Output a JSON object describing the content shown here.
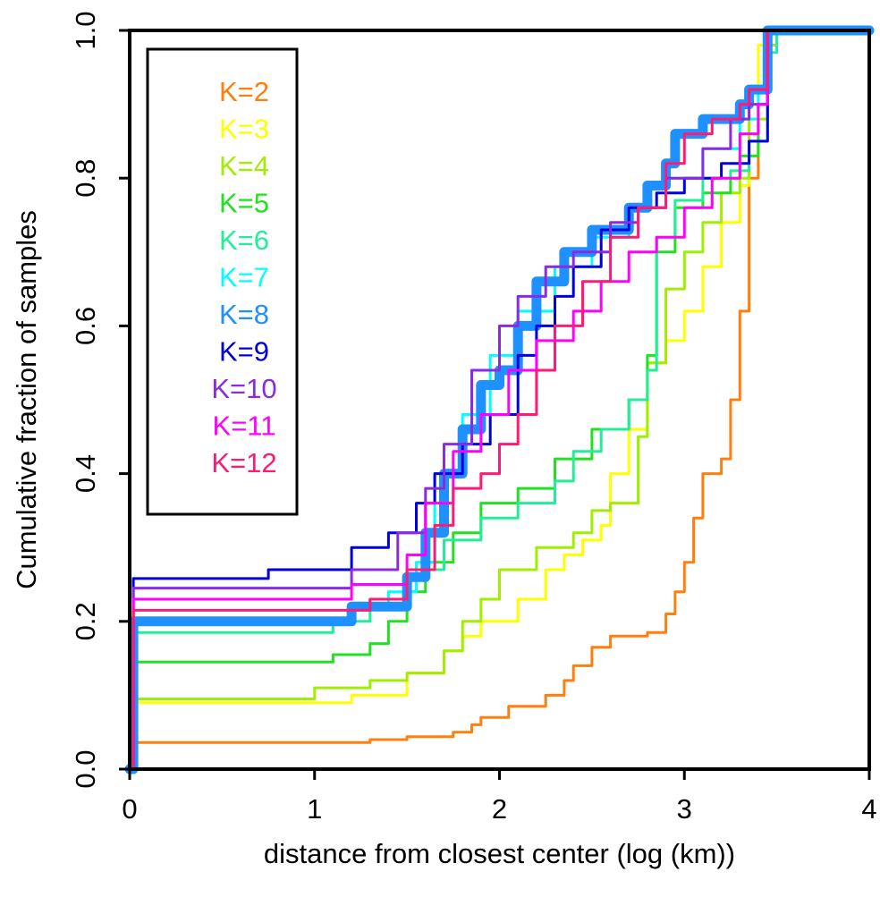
{
  "chart_data": {
    "type": "line",
    "title": "",
    "xlabel": "distance from closest center (log (km))",
    "ylabel": "Cumulative fraction of samples",
    "xlim": [
      0,
      4
    ],
    "ylim": [
      0,
      1
    ],
    "xticks": [
      "0",
      "1",
      "2",
      "3",
      "4"
    ],
    "yticks": [
      "0.0",
      "0.2",
      "0.4",
      "0.6",
      "0.8",
      "1.0"
    ],
    "grid": false,
    "legend_position": "top-left",
    "reference_lines": [
      0,
      1
    ],
    "series": [
      {
        "name": "K=2",
        "color": "#ff7f0e",
        "width": 3,
        "points": [
          [
            0,
            0
          ],
          [
            0.02,
            0.036
          ],
          [
            1.1,
            0.036
          ],
          [
            1.3,
            0.04
          ],
          [
            1.5,
            0.044
          ],
          [
            1.75,
            0.05
          ],
          [
            1.85,
            0.06
          ],
          [
            1.9,
            0.07
          ],
          [
            2.05,
            0.085
          ],
          [
            2.2,
            0.085
          ],
          [
            2.25,
            0.1
          ],
          [
            2.35,
            0.12
          ],
          [
            2.4,
            0.14
          ],
          [
            2.5,
            0.165
          ],
          [
            2.6,
            0.18
          ],
          [
            2.8,
            0.185
          ],
          [
            2.9,
            0.21
          ],
          [
            2.95,
            0.24
          ],
          [
            3.0,
            0.28
          ],
          [
            3.05,
            0.34
          ],
          [
            3.1,
            0.4
          ],
          [
            3.2,
            0.42
          ],
          [
            3.25,
            0.5
          ],
          [
            3.3,
            0.62
          ],
          [
            3.35,
            0.8
          ],
          [
            3.4,
            0.9
          ],
          [
            3.45,
            1.0
          ],
          [
            4.0,
            1.0
          ]
        ]
      },
      {
        "name": "K=3",
        "color": "#ffff00",
        "width": 3,
        "points": [
          [
            0,
            0
          ],
          [
            0.02,
            0.09
          ],
          [
            1.1,
            0.09
          ],
          [
            1.2,
            0.1
          ],
          [
            1.5,
            0.13
          ],
          [
            1.7,
            0.16
          ],
          [
            1.8,
            0.18
          ],
          [
            1.9,
            0.2
          ],
          [
            2.1,
            0.23
          ],
          [
            2.25,
            0.27
          ],
          [
            2.35,
            0.29
          ],
          [
            2.45,
            0.31
          ],
          [
            2.55,
            0.33
          ],
          [
            2.6,
            0.4
          ],
          [
            2.7,
            0.46
          ],
          [
            2.8,
            0.55
          ],
          [
            2.9,
            0.58
          ],
          [
            3.0,
            0.62
          ],
          [
            3.1,
            0.68
          ],
          [
            3.2,
            0.74
          ],
          [
            3.3,
            0.79
          ],
          [
            3.35,
            0.9
          ],
          [
            3.4,
            0.98
          ],
          [
            3.45,
            1.0
          ],
          [
            4.0,
            1.0
          ]
        ]
      },
      {
        "name": "K=4",
        "color": "#a0ee00",
        "width": 3,
        "points": [
          [
            0,
            0
          ],
          [
            0.02,
            0.095
          ],
          [
            0.9,
            0.095
          ],
          [
            1.0,
            0.11
          ],
          [
            1.3,
            0.12
          ],
          [
            1.5,
            0.13
          ],
          [
            1.7,
            0.16
          ],
          [
            1.8,
            0.2
          ],
          [
            1.9,
            0.23
          ],
          [
            2.0,
            0.27
          ],
          [
            2.2,
            0.3
          ],
          [
            2.4,
            0.32
          ],
          [
            2.5,
            0.35
          ],
          [
            2.6,
            0.36
          ],
          [
            2.75,
            0.45
          ],
          [
            2.8,
            0.55
          ],
          [
            2.9,
            0.65
          ],
          [
            3.0,
            0.7
          ],
          [
            3.1,
            0.74
          ],
          [
            3.2,
            0.78
          ],
          [
            3.3,
            0.8
          ],
          [
            3.35,
            0.88
          ],
          [
            3.45,
            0.98
          ],
          [
            3.5,
            1.0
          ],
          [
            4.0,
            1.0
          ]
        ]
      },
      {
        "name": "K=5",
        "color": "#22e022",
        "width": 3,
        "points": [
          [
            0,
            0
          ],
          [
            0.02,
            0.145
          ],
          [
            1.0,
            0.145
          ],
          [
            1.1,
            0.155
          ],
          [
            1.3,
            0.17
          ],
          [
            1.4,
            0.2
          ],
          [
            1.5,
            0.24
          ],
          [
            1.6,
            0.28
          ],
          [
            1.75,
            0.32
          ],
          [
            1.9,
            0.36
          ],
          [
            2.1,
            0.38
          ],
          [
            2.3,
            0.42
          ],
          [
            2.5,
            0.46
          ],
          [
            2.7,
            0.5
          ],
          [
            2.8,
            0.56
          ],
          [
            2.85,
            0.7
          ],
          [
            2.95,
            0.76
          ],
          [
            3.1,
            0.78
          ],
          [
            3.25,
            0.8
          ],
          [
            3.3,
            0.83
          ],
          [
            3.4,
            0.9
          ],
          [
            3.45,
            1.0
          ],
          [
            4.0,
            1.0
          ]
        ]
      },
      {
        "name": "K=6",
        "color": "#22ee99",
        "width": 3,
        "points": [
          [
            0,
            0
          ],
          [
            0.02,
            0.185
          ],
          [
            1.0,
            0.185
          ],
          [
            1.1,
            0.2
          ],
          [
            1.3,
            0.23
          ],
          [
            1.5,
            0.27
          ],
          [
            1.7,
            0.31
          ],
          [
            1.9,
            0.34
          ],
          [
            2.1,
            0.36
          ],
          [
            2.3,
            0.39
          ],
          [
            2.4,
            0.43
          ],
          [
            2.55,
            0.46
          ],
          [
            2.7,
            0.5
          ],
          [
            2.8,
            0.54
          ],
          [
            2.85,
            0.72
          ],
          [
            2.95,
            0.77
          ],
          [
            3.1,
            0.8
          ],
          [
            3.25,
            0.81
          ],
          [
            3.35,
            0.85
          ],
          [
            3.45,
            0.97
          ],
          [
            3.5,
            1.0
          ],
          [
            4.0,
            1.0
          ]
        ]
      },
      {
        "name": "K=7",
        "color": "#00ffff",
        "width": 3,
        "points": [
          [
            0,
            0
          ],
          [
            0.02,
            0.2
          ],
          [
            1.1,
            0.2
          ],
          [
            1.2,
            0.22
          ],
          [
            1.4,
            0.24
          ],
          [
            1.55,
            0.28
          ],
          [
            1.65,
            0.4
          ],
          [
            1.8,
            0.48
          ],
          [
            1.95,
            0.56
          ],
          [
            2.1,
            0.62
          ],
          [
            2.3,
            0.68
          ],
          [
            2.5,
            0.72
          ],
          [
            2.7,
            0.76
          ],
          [
            2.9,
            0.8
          ],
          [
            3.1,
            0.84
          ],
          [
            3.3,
            0.88
          ],
          [
            3.4,
            0.92
          ],
          [
            3.45,
            1.0
          ],
          [
            4.0,
            1.0
          ]
        ]
      },
      {
        "name": "K=8",
        "color": "#1e90ff",
        "width": 11,
        "points": [
          [
            0,
            0
          ],
          [
            0.02,
            0.2
          ],
          [
            1.0,
            0.2
          ],
          [
            1.2,
            0.22
          ],
          [
            1.5,
            0.26
          ],
          [
            1.6,
            0.32
          ],
          [
            1.7,
            0.4
          ],
          [
            1.8,
            0.46
          ],
          [
            1.9,
            0.52
          ],
          [
            2.0,
            0.54
          ],
          [
            2.1,
            0.6
          ],
          [
            2.2,
            0.66
          ],
          [
            2.35,
            0.7
          ],
          [
            2.5,
            0.73
          ],
          [
            2.7,
            0.76
          ],
          [
            2.8,
            0.79
          ],
          [
            2.9,
            0.82
          ],
          [
            2.95,
            0.86
          ],
          [
            3.1,
            0.88
          ],
          [
            3.3,
            0.9
          ],
          [
            3.35,
            0.92
          ],
          [
            3.45,
            1.0
          ],
          [
            4.0,
            1.0
          ]
        ]
      },
      {
        "name": "K=9",
        "color": "#0000dd",
        "width": 3,
        "points": [
          [
            0,
            0
          ],
          [
            0.02,
            0.258
          ],
          [
            0.7,
            0.258
          ],
          [
            0.75,
            0.27
          ],
          [
            1.2,
            0.3
          ],
          [
            1.4,
            0.32
          ],
          [
            1.55,
            0.36
          ],
          [
            1.65,
            0.4
          ],
          [
            1.8,
            0.44
          ],
          [
            1.95,
            0.48
          ],
          [
            2.1,
            0.56
          ],
          [
            2.2,
            0.6
          ],
          [
            2.3,
            0.64
          ],
          [
            2.4,
            0.68
          ],
          [
            2.55,
            0.73
          ],
          [
            2.7,
            0.76
          ],
          [
            2.85,
            0.78
          ],
          [
            3.0,
            0.8
          ],
          [
            3.2,
            0.82
          ],
          [
            3.35,
            0.85
          ],
          [
            3.45,
            1.0
          ],
          [
            4.0,
            1.0
          ]
        ]
      },
      {
        "name": "K=10",
        "color": "#8a2be2",
        "width": 3,
        "points": [
          [
            0,
            0
          ],
          [
            0.02,
            0.245
          ],
          [
            1.0,
            0.245
          ],
          [
            1.2,
            0.27
          ],
          [
            1.45,
            0.32
          ],
          [
            1.6,
            0.38
          ],
          [
            1.7,
            0.44
          ],
          [
            1.85,
            0.54
          ],
          [
            2.0,
            0.6
          ],
          [
            2.1,
            0.64
          ],
          [
            2.25,
            0.68
          ],
          [
            2.4,
            0.7
          ],
          [
            2.6,
            0.74
          ],
          [
            2.75,
            0.76
          ],
          [
            2.9,
            0.8
          ],
          [
            3.1,
            0.84
          ],
          [
            3.25,
            0.88
          ],
          [
            3.35,
            0.9
          ],
          [
            3.45,
            1.0
          ],
          [
            4.0,
            1.0
          ]
        ]
      },
      {
        "name": "K=11",
        "color": "#ff00ff",
        "width": 3,
        "points": [
          [
            0,
            0
          ],
          [
            0.02,
            0.23
          ],
          [
            1.0,
            0.23
          ],
          [
            1.2,
            0.25
          ],
          [
            1.5,
            0.29
          ],
          [
            1.6,
            0.36
          ],
          [
            1.75,
            0.43
          ],
          [
            1.9,
            0.48
          ],
          [
            2.05,
            0.54
          ],
          [
            2.2,
            0.58
          ],
          [
            2.4,
            0.62
          ],
          [
            2.55,
            0.66
          ],
          [
            2.7,
            0.7
          ],
          [
            2.85,
            0.72
          ],
          [
            3.0,
            0.76
          ],
          [
            3.15,
            0.8
          ],
          [
            3.3,
            0.86
          ],
          [
            3.4,
            0.9
          ],
          [
            3.45,
            1.0
          ],
          [
            4.0,
            1.0
          ]
        ]
      },
      {
        "name": "K=12",
        "color": "#ff1a75",
        "width": 3,
        "points": [
          [
            0,
            0
          ],
          [
            0.02,
            0.215
          ],
          [
            1.0,
            0.215
          ],
          [
            1.3,
            0.23
          ],
          [
            1.5,
            0.27
          ],
          [
            1.65,
            0.33
          ],
          [
            1.75,
            0.38
          ],
          [
            1.9,
            0.4
          ],
          [
            2.0,
            0.44
          ],
          [
            2.1,
            0.48
          ],
          [
            2.2,
            0.54
          ],
          [
            2.3,
            0.6
          ],
          [
            2.45,
            0.66
          ],
          [
            2.6,
            0.72
          ],
          [
            2.75,
            0.76
          ],
          [
            2.9,
            0.82
          ],
          [
            3.0,
            0.86
          ],
          [
            3.15,
            0.88
          ],
          [
            3.3,
            0.9
          ],
          [
            3.35,
            0.92
          ],
          [
            3.45,
            1.0
          ],
          [
            4.0,
            1.0
          ]
        ]
      }
    ]
  }
}
